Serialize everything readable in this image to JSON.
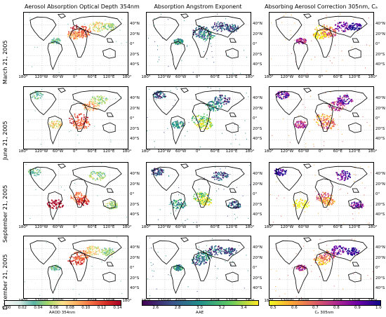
{
  "columns": [
    {
      "title": "Aerosol Absorption Optical Depth 354nm"
    },
    {
      "title": "Absorption Angstrom Exponent"
    },
    {
      "title": "Absorbing Aerosol Correction 305nm, Cₐ"
    }
  ],
  "rows": [
    {
      "label": "March 21, 2005"
    },
    {
      "label": "June 21, 2005"
    },
    {
      "label": "September 21, 2005"
    },
    {
      "label": "December 21, 2005"
    }
  ],
  "lat_ticks": [
    "40°N",
    "20°N",
    "0°",
    "20°S",
    "40°S"
  ],
  "lon_ticks": [
    "180°",
    "120°W",
    "60°W",
    "0°",
    "60°E",
    "120°E",
    "180°"
  ],
  "colorbars": [
    {
      "ticks": [
        "0.00",
        "0.02",
        "0.04",
        "0.06",
        "0.08",
        "0.10",
        "0.12",
        "0.14"
      ],
      "label": "AAOD 354nm",
      "colors": [
        "#f7f7f7",
        "#d7ebe5",
        "#5cb4a6",
        "#a6d96a",
        "#fee08b",
        "#fdae61",
        "#f46d43",
        "#d73027",
        "#a50026"
      ]
    },
    {
      "ticks": [
        "2.6",
        "2.8",
        "3.0",
        "3.2",
        "3.4"
      ],
      "label": "AAE",
      "colors": [
        "#440154",
        "#3b528b",
        "#21918c",
        "#5ec962",
        "#fde725"
      ]
    },
    {
      "ticks": [
        "0.5",
        "0.6",
        "0.7",
        "0.8",
        "0.9",
        "1.0"
      ],
      "label": "Cₐ 305nm",
      "colors": [
        "#f0f921",
        "#fca636",
        "#e16462",
        "#b12a90",
        "#6a00a8",
        "#0d0887"
      ]
    }
  ],
  "colors": {
    "land_outline": "#000000",
    "grid": "#bbbbbb"
  }
}
